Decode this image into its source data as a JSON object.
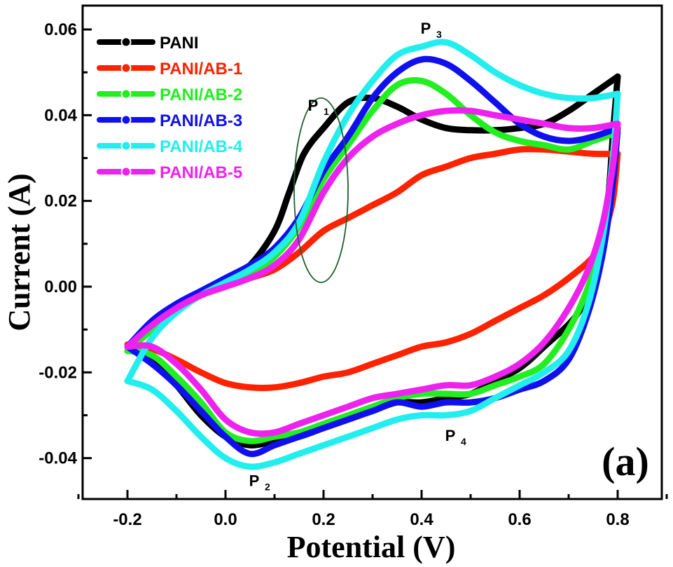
{
  "chart_data": {
    "type": "line",
    "title": "",
    "xlabel": "Potential (V)",
    "ylabel": "Current (A)",
    "xlim": [
      -0.3,
      0.95
    ],
    "ylim": [
      -0.05,
      0.063
    ],
    "xticks": [
      -0.2,
      0.0,
      0.2,
      0.4,
      0.6,
      0.8
    ],
    "xtick_labels": [
      "-0.2",
      "0.0",
      "0.2",
      "0.4",
      "0.6",
      "0.8"
    ],
    "yticks": [
      -0.04,
      -0.02,
      0.0,
      0.02,
      0.04,
      0.06
    ],
    "ytick_labels": [
      "-0.04",
      "-0.02",
      "0.00",
      "0.02",
      "0.04",
      "0.06"
    ],
    "grid": false,
    "legend_position": "top-left",
    "panel_label": "(a)",
    "annotations": [
      {
        "main": "P",
        "sub": "1",
        "x": 0.19,
        "y": 0.041
      },
      {
        "main": "P",
        "sub": "2",
        "x": 0.07,
        "y": -0.0465
      },
      {
        "main": "P",
        "sub": "3",
        "x": 0.42,
        "y": 0.059
      },
      {
        "main": "P",
        "sub": "4",
        "x": 0.47,
        "y": -0.036
      }
    ],
    "highlight_ellipse": {
      "cx": 0.195,
      "cy": 0.0225,
      "rx": 0.055,
      "ry": 0.0215
    },
    "series": [
      {
        "name": "PANI",
        "color": "#000000",
        "forward": [
          [
            -0.2,
            -0.014
          ],
          [
            -0.15,
            -0.009
          ],
          [
            -0.1,
            -0.005
          ],
          [
            -0.05,
            -0.002
          ],
          [
            0.0,
            0.001
          ],
          [
            0.05,
            0.005
          ],
          [
            0.1,
            0.013
          ],
          [
            0.13,
            0.022
          ],
          [
            0.16,
            0.031
          ],
          [
            0.2,
            0.037
          ],
          [
            0.25,
            0.043
          ],
          [
            0.3,
            0.044
          ],
          [
            0.35,
            0.042
          ],
          [
            0.4,
            0.039
          ],
          [
            0.45,
            0.037
          ],
          [
            0.5,
            0.0365
          ],
          [
            0.55,
            0.0365
          ],
          [
            0.6,
            0.037
          ],
          [
            0.65,
            0.038
          ],
          [
            0.7,
            0.041
          ],
          [
            0.75,
            0.045
          ],
          [
            0.8,
            0.049
          ]
        ],
        "reverse": [
          [
            0.8,
            0.049
          ],
          [
            0.79,
            0.035
          ],
          [
            0.78,
            0.02
          ],
          [
            0.76,
            0.005
          ],
          [
            0.72,
            -0.006
          ],
          [
            0.65,
            -0.014
          ],
          [
            0.6,
            -0.019
          ],
          [
            0.55,
            -0.022
          ],
          [
            0.5,
            -0.025
          ],
          [
            0.45,
            -0.026
          ],
          [
            0.4,
            -0.027
          ],
          [
            0.35,
            -0.027
          ],
          [
            0.3,
            -0.029
          ],
          [
            0.25,
            -0.031
          ],
          [
            0.2,
            -0.033
          ],
          [
            0.15,
            -0.035
          ],
          [
            0.1,
            -0.036
          ],
          [
            0.05,
            -0.037
          ],
          [
            0.0,
            -0.035
          ],
          [
            -0.05,
            -0.03
          ],
          [
            -0.1,
            -0.023
          ],
          [
            -0.15,
            -0.017
          ],
          [
            -0.2,
            -0.014
          ]
        ]
      },
      {
        "name": "PANI/AB-1",
        "color": "#ff2200",
        "forward": [
          [
            -0.2,
            -0.014
          ],
          [
            -0.15,
            -0.009
          ],
          [
            -0.1,
            -0.005
          ],
          [
            -0.05,
            -0.002
          ],
          [
            0.0,
            0.0
          ],
          [
            0.05,
            0.002
          ],
          [
            0.1,
            0.004
          ],
          [
            0.15,
            0.008
          ],
          [
            0.2,
            0.013
          ],
          [
            0.25,
            0.016
          ],
          [
            0.3,
            0.019
          ],
          [
            0.35,
            0.022
          ],
          [
            0.4,
            0.026
          ],
          [
            0.45,
            0.028
          ],
          [
            0.5,
            0.03
          ],
          [
            0.55,
            0.031
          ],
          [
            0.6,
            0.032
          ],
          [
            0.65,
            0.032
          ],
          [
            0.7,
            0.0315
          ],
          [
            0.75,
            0.031
          ],
          [
            0.8,
            0.031
          ]
        ],
        "reverse": [
          [
            0.8,
            0.031
          ],
          [
            0.79,
            0.02
          ],
          [
            0.77,
            0.012
          ],
          [
            0.75,
            0.007
          ],
          [
            0.7,
            0.002
          ],
          [
            0.65,
            -0.002
          ],
          [
            0.6,
            -0.005
          ],
          [
            0.55,
            -0.008
          ],
          [
            0.5,
            -0.011
          ],
          [
            0.45,
            -0.013
          ],
          [
            0.4,
            -0.014
          ],
          [
            0.35,
            -0.016
          ],
          [
            0.3,
            -0.018
          ],
          [
            0.25,
            -0.02
          ],
          [
            0.2,
            -0.021
          ],
          [
            0.15,
            -0.0225
          ],
          [
            0.1,
            -0.0235
          ],
          [
            0.05,
            -0.0235
          ],
          [
            0.0,
            -0.0225
          ],
          [
            -0.05,
            -0.02
          ],
          [
            -0.1,
            -0.017
          ],
          [
            -0.15,
            -0.0145
          ],
          [
            -0.2,
            -0.0135
          ]
        ]
      },
      {
        "name": "PANI/AB-2",
        "color": "#22ee22",
        "forward": [
          [
            -0.2,
            -0.015
          ],
          [
            -0.15,
            -0.01
          ],
          [
            -0.1,
            -0.005
          ],
          [
            -0.05,
            -0.002
          ],
          [
            0.0,
            0.001
          ],
          [
            0.05,
            0.003
          ],
          [
            0.1,
            0.007
          ],
          [
            0.15,
            0.014
          ],
          [
            0.2,
            0.025
          ],
          [
            0.25,
            0.033
          ],
          [
            0.3,
            0.041
          ],
          [
            0.35,
            0.047
          ],
          [
            0.4,
            0.048
          ],
          [
            0.45,
            0.045
          ],
          [
            0.5,
            0.04
          ],
          [
            0.55,
            0.036
          ],
          [
            0.6,
            0.034
          ],
          [
            0.65,
            0.033
          ],
          [
            0.7,
            0.032
          ],
          [
            0.75,
            0.034
          ],
          [
            0.8,
            0.036
          ]
        ],
        "reverse": [
          [
            0.8,
            0.036
          ],
          [
            0.79,
            0.025
          ],
          [
            0.77,
            0.012
          ],
          [
            0.74,
            0.0
          ],
          [
            0.7,
            -0.01
          ],
          [
            0.65,
            -0.018
          ],
          [
            0.6,
            -0.021
          ],
          [
            0.55,
            -0.023
          ],
          [
            0.5,
            -0.025
          ],
          [
            0.45,
            -0.025
          ],
          [
            0.4,
            -0.025
          ],
          [
            0.35,
            -0.026
          ],
          [
            0.3,
            -0.028
          ],
          [
            0.25,
            -0.03
          ],
          [
            0.2,
            -0.032
          ],
          [
            0.15,
            -0.034
          ],
          [
            0.1,
            -0.035
          ],
          [
            0.05,
            -0.036
          ],
          [
            0.0,
            -0.034
          ],
          [
            -0.05,
            -0.027
          ],
          [
            -0.1,
            -0.021
          ],
          [
            -0.15,
            -0.016
          ],
          [
            -0.2,
            -0.015
          ]
        ]
      },
      {
        "name": "PANI/AB-3",
        "color": "#1010ee",
        "forward": [
          [
            -0.2,
            -0.014
          ],
          [
            -0.15,
            -0.008
          ],
          [
            -0.1,
            -0.004
          ],
          [
            -0.05,
            -0.001
          ],
          [
            0.0,
            0.002
          ],
          [
            0.05,
            0.005
          ],
          [
            0.1,
            0.009
          ],
          [
            0.15,
            0.016
          ],
          [
            0.2,
            0.027
          ],
          [
            0.25,
            0.035
          ],
          [
            0.3,
            0.044
          ],
          [
            0.35,
            0.05
          ],
          [
            0.4,
            0.053
          ],
          [
            0.45,
            0.052
          ],
          [
            0.5,
            0.048
          ],
          [
            0.55,
            0.043
          ],
          [
            0.6,
            0.038
          ],
          [
            0.65,
            0.035
          ],
          [
            0.7,
            0.034
          ],
          [
            0.75,
            0.035
          ],
          [
            0.8,
            0.037
          ]
        ],
        "reverse": [
          [
            0.8,
            0.037
          ],
          [
            0.79,
            0.024
          ],
          [
            0.77,
            0.008
          ],
          [
            0.74,
            -0.006
          ],
          [
            0.7,
            -0.017
          ],
          [
            0.65,
            -0.022
          ],
          [
            0.6,
            -0.024
          ],
          [
            0.55,
            -0.026
          ],
          [
            0.5,
            -0.027
          ],
          [
            0.45,
            -0.027
          ],
          [
            0.4,
            -0.028
          ],
          [
            0.35,
            -0.027
          ],
          [
            0.3,
            -0.029
          ],
          [
            0.25,
            -0.031
          ],
          [
            0.2,
            -0.033
          ],
          [
            0.15,
            -0.035
          ],
          [
            0.1,
            -0.037
          ],
          [
            0.05,
            -0.039
          ],
          [
            0.0,
            -0.035
          ],
          [
            -0.05,
            -0.029
          ],
          [
            -0.1,
            -0.023
          ],
          [
            -0.15,
            -0.018
          ],
          [
            -0.2,
            -0.014
          ]
        ]
      },
      {
        "name": "PANI/AB-4",
        "color": "#22eeee",
        "forward": [
          [
            -0.2,
            -0.022
          ],
          [
            -0.15,
            -0.012
          ],
          [
            -0.1,
            -0.006
          ],
          [
            -0.05,
            -0.002
          ],
          [
            0.0,
            0.001
          ],
          [
            0.05,
            0.004
          ],
          [
            0.1,
            0.008
          ],
          [
            0.15,
            0.015
          ],
          [
            0.2,
            0.029
          ],
          [
            0.25,
            0.04
          ],
          [
            0.3,
            0.048
          ],
          [
            0.35,
            0.054
          ],
          [
            0.4,
            0.056
          ],
          [
            0.45,
            0.057
          ],
          [
            0.5,
            0.054
          ],
          [
            0.55,
            0.05
          ],
          [
            0.6,
            0.047
          ],
          [
            0.65,
            0.045
          ],
          [
            0.7,
            0.044
          ],
          [
            0.75,
            0.044
          ],
          [
            0.8,
            0.045
          ]
        ],
        "reverse": [
          [
            0.8,
            0.045
          ],
          [
            0.79,
            0.03
          ],
          [
            0.77,
            0.012
          ],
          [
            0.74,
            -0.004
          ],
          [
            0.7,
            -0.015
          ],
          [
            0.65,
            -0.02
          ],
          [
            0.6,
            -0.023
          ],
          [
            0.55,
            -0.026
          ],
          [
            0.5,
            -0.029
          ],
          [
            0.45,
            -0.03
          ],
          [
            0.4,
            -0.03
          ],
          [
            0.35,
            -0.031
          ],
          [
            0.3,
            -0.033
          ],
          [
            0.25,
            -0.035
          ],
          [
            0.2,
            -0.037
          ],
          [
            0.15,
            -0.039
          ],
          [
            0.1,
            -0.041
          ],
          [
            0.05,
            -0.042
          ],
          [
            0.0,
            -0.04
          ],
          [
            -0.05,
            -0.035
          ],
          [
            -0.1,
            -0.029
          ],
          [
            -0.15,
            -0.024
          ],
          [
            -0.2,
            -0.022
          ]
        ]
      },
      {
        "name": "PANI/AB-5",
        "color": "#ee22ee",
        "forward": [
          [
            -0.2,
            -0.014
          ],
          [
            -0.15,
            -0.009
          ],
          [
            -0.1,
            -0.005
          ],
          [
            -0.05,
            -0.002
          ],
          [
            0.0,
            0.0
          ],
          [
            0.05,
            0.002
          ],
          [
            0.1,
            0.005
          ],
          [
            0.15,
            0.011
          ],
          [
            0.2,
            0.022
          ],
          [
            0.25,
            0.03
          ],
          [
            0.3,
            0.035
          ],
          [
            0.35,
            0.038
          ],
          [
            0.4,
            0.04
          ],
          [
            0.45,
            0.041
          ],
          [
            0.5,
            0.041
          ],
          [
            0.55,
            0.04
          ],
          [
            0.6,
            0.039
          ],
          [
            0.65,
            0.038
          ],
          [
            0.7,
            0.037
          ],
          [
            0.75,
            0.037
          ],
          [
            0.8,
            0.038
          ]
        ],
        "reverse": [
          [
            0.8,
            0.038
          ],
          [
            0.79,
            0.028
          ],
          [
            0.77,
            0.015
          ],
          [
            0.74,
            0.004
          ],
          [
            0.7,
            -0.005
          ],
          [
            0.65,
            -0.013
          ],
          [
            0.6,
            -0.018
          ],
          [
            0.55,
            -0.021
          ],
          [
            0.5,
            -0.023
          ],
          [
            0.45,
            -0.023
          ],
          [
            0.4,
            -0.024
          ],
          [
            0.35,
            -0.025
          ],
          [
            0.3,
            -0.026
          ],
          [
            0.25,
            -0.028
          ],
          [
            0.2,
            -0.03
          ],
          [
            0.15,
            -0.032
          ],
          [
            0.1,
            -0.034
          ],
          [
            0.05,
            -0.034
          ],
          [
            0.0,
            -0.031
          ],
          [
            -0.05,
            -0.024
          ],
          [
            -0.1,
            -0.018
          ],
          [
            -0.15,
            -0.014
          ],
          [
            -0.2,
            -0.014
          ]
        ]
      }
    ]
  }
}
